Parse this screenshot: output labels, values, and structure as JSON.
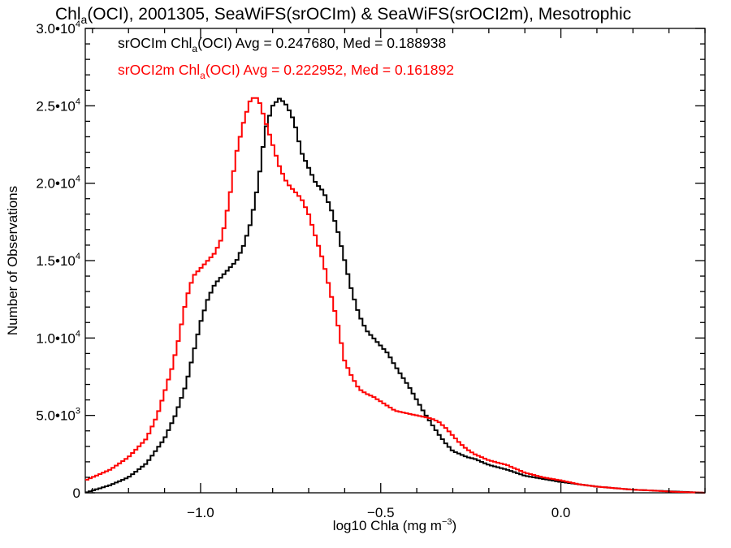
{
  "chart_data": {
    "type": "line",
    "title": {
      "pre": "Chl",
      "sub": "a",
      "post": "(OCI), 2001305, SeaWiFS(srOCIm) & SeaWiFS(srOCI2m), Mesotrophic"
    },
    "xlabel": {
      "pre": "log10 Chla (mg m",
      "sup": "−3",
      "post": ")"
    },
    "ylabel": "Number of Observations",
    "xlim": [
      -1.32,
      0.4
    ],
    "ylim": [
      0,
      30000
    ],
    "x_ticks": [
      {
        "value": -1.0,
        "label": "−1.0"
      },
      {
        "value": -0.5,
        "label": "−0.5"
      },
      {
        "value": 0.0,
        "label": "0.0"
      }
    ],
    "y_ticks": [
      {
        "value": 0,
        "mant": "0",
        "exp": ""
      },
      {
        "value": 5000,
        "mant": "5.0•10",
        "exp": "3"
      },
      {
        "value": 10000,
        "mant": "1.0•10",
        "exp": "4"
      },
      {
        "value": 15000,
        "mant": "1.5•10",
        "exp": "4"
      },
      {
        "value": 20000,
        "mant": "2.0•10",
        "exp": "4"
      },
      {
        "value": 25000,
        "mant": "2.5•10",
        "exp": "4"
      },
      {
        "value": 30000,
        "mant": "3.0•10",
        "exp": "4"
      }
    ],
    "grid": false,
    "legend_position": "top-left",
    "series": [
      {
        "color": "#000000",
        "legend": {
          "pre": "srOCIm Chl",
          "sub": "a",
          "post": "(OCI) Avg = 0.247680, Med = 0.188938"
        },
        "x": [
          -1.32,
          -1.25,
          -1.2,
          -1.15,
          -1.1,
          -1.07,
          -1.04,
          -1.02,
          -1.0,
          -0.98,
          -0.96,
          -0.94,
          -0.92,
          -0.9,
          -0.88,
          -0.86,
          -0.84,
          -0.82,
          -0.8,
          -0.78,
          -0.76,
          -0.74,
          -0.72,
          -0.7,
          -0.68,
          -0.66,
          -0.64,
          -0.62,
          -0.6,
          -0.58,
          -0.56,
          -0.54,
          -0.52,
          -0.5,
          -0.48,
          -0.46,
          -0.44,
          -0.42,
          -0.4,
          -0.38,
          -0.36,
          -0.34,
          -0.32,
          -0.3,
          -0.28,
          -0.26,
          -0.24,
          -0.22,
          -0.2,
          -0.15,
          -0.1,
          -0.05,
          0.0,
          0.05,
          0.1,
          0.15,
          0.2,
          0.25,
          0.3,
          0.35,
          0.4
        ],
        "y": [
          0,
          500,
          1000,
          1900,
          3500,
          5000,
          7000,
          9000,
          11000,
          12500,
          13500,
          14000,
          14500,
          15000,
          16000,
          17500,
          20000,
          23500,
          25000,
          25500,
          25000,
          24000,
          22000,
          21000,
          20000,
          19500,
          18500,
          17000,
          15000,
          13000,
          11500,
          10500,
          10000,
          9500,
          9000,
          8200,
          7500,
          6800,
          6000,
          5200,
          4500,
          3800,
          3200,
          2700,
          2500,
          2300,
          2200,
          2000,
          1800,
          1500,
          1100,
          900,
          700,
          550,
          400,
          300,
          200,
          150,
          100,
          50,
          0
        ]
      },
      {
        "color": "#ff0000",
        "legend": {
          "pre": "srOCI2m Chl",
          "sub": "a",
          "post": "(OCI) Avg = 0.222952, Med = 0.161892"
        },
        "x": [
          -1.32,
          -1.25,
          -1.2,
          -1.15,
          -1.12,
          -1.1,
          -1.08,
          -1.06,
          -1.04,
          -1.02,
          -1.0,
          -0.98,
          -0.96,
          -0.94,
          -0.92,
          -0.9,
          -0.88,
          -0.86,
          -0.84,
          -0.82,
          -0.8,
          -0.78,
          -0.76,
          -0.74,
          -0.72,
          -0.7,
          -0.68,
          -0.66,
          -0.64,
          -0.62,
          -0.6,
          -0.58,
          -0.56,
          -0.54,
          -0.52,
          -0.5,
          -0.48,
          -0.46,
          -0.44,
          -0.42,
          -0.4,
          -0.38,
          -0.36,
          -0.34,
          -0.32,
          -0.3,
          -0.28,
          -0.26,
          -0.24,
          -0.22,
          -0.2,
          -0.15,
          -0.1,
          -0.05,
          0.0,
          0.05,
          0.1,
          0.15,
          0.2,
          0.25,
          0.3,
          0.35,
          0.4
        ],
        "y": [
          800,
          1500,
          2300,
          3500,
          5000,
          6500,
          8000,
          10000,
          12500,
          14000,
          14500,
          15000,
          15500,
          16500,
          19000,
          22000,
          24000,
          25500,
          25500,
          24000,
          22500,
          21000,
          20000,
          19500,
          19000,
          18000,
          16500,
          15000,
          13000,
          11000,
          8500,
          7500,
          6700,
          6400,
          6200,
          5900,
          5600,
          5300,
          5200,
          5100,
          5000,
          4900,
          4800,
          4600,
          4200,
          3700,
          3200,
          2800,
          2500,
          2300,
          2100,
          1800,
          1300,
          1000,
          800,
          550,
          400,
          300,
          200,
          150,
          80,
          40,
          0
        ]
      }
    ]
  }
}
